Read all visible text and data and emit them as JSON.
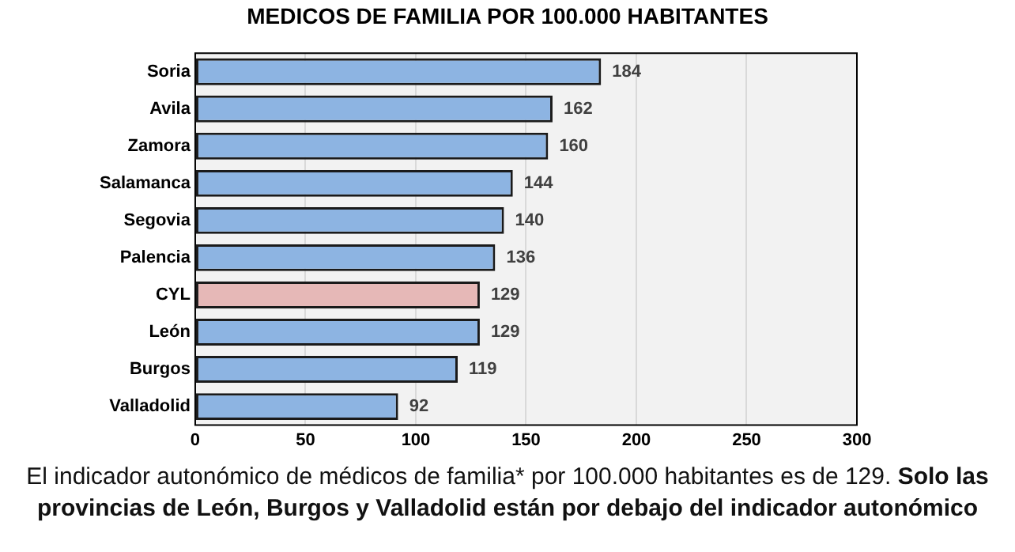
{
  "chart_data": {
    "type": "bar",
    "orientation": "horizontal",
    "title": "MEDICOS DE FAMILIA POR 100.000 HABITANTES",
    "categories": [
      "Soria",
      "Avila",
      "Zamora",
      "Salamanca",
      "Segovia",
      "Palencia",
      "CYL",
      "León",
      "Burgos",
      "Valladolid"
    ],
    "values": [
      184,
      162,
      160,
      144,
      140,
      136,
      129,
      129,
      119,
      92
    ],
    "colors": [
      "#8db4e2",
      "#8db4e2",
      "#8db4e2",
      "#8db4e2",
      "#8db4e2",
      "#8db4e2",
      "#e6b8b7",
      "#8db4e2",
      "#8db4e2",
      "#8db4e2"
    ],
    "xlim": [
      0,
      300
    ],
    "xticks": [
      0,
      50,
      100,
      150,
      200,
      250,
      300
    ],
    "grid": "x",
    "data_labels": true,
    "legend": false,
    "annotations": [
      "El indicador autonómico de médicos de familia* por 100.000 habitantes es de 129.",
      "Solo las provincias de León, Burgos y Valladolid están por debajo del indicador autonómico"
    ]
  }
}
